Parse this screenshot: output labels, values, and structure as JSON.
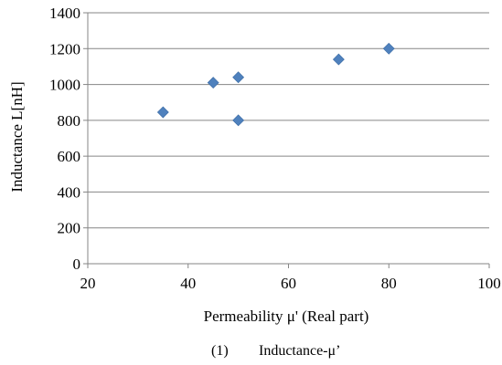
{
  "chart_data": {
    "type": "scatter",
    "xlabel": "Permeability μ' (Real part)",
    "ylabel": "Inductance L[nH]",
    "xlim": [
      20,
      100
    ],
    "ylim": [
      0,
      1400
    ],
    "xticks": [
      20,
      40,
      60,
      80,
      100
    ],
    "yticks": [
      0,
      200,
      400,
      600,
      800,
      1000,
      1200,
      1400
    ],
    "grid": "horizontal",
    "legend": "none",
    "marker": "diamond",
    "colors": {
      "marker": "#4f81bd",
      "grid": "#868686",
      "axis": "#868686"
    },
    "series": [
      {
        "points": [
          {
            "x": 35,
            "y": 845
          },
          {
            "x": 45,
            "y": 1010
          },
          {
            "x": 50,
            "y": 1040
          },
          {
            "x": 50,
            "y": 800
          },
          {
            "x": 70,
            "y": 1140
          },
          {
            "x": 80,
            "y": 1200
          }
        ]
      }
    ]
  },
  "caption": {
    "number": "(1)",
    "text": "Inductance-μ’"
  }
}
